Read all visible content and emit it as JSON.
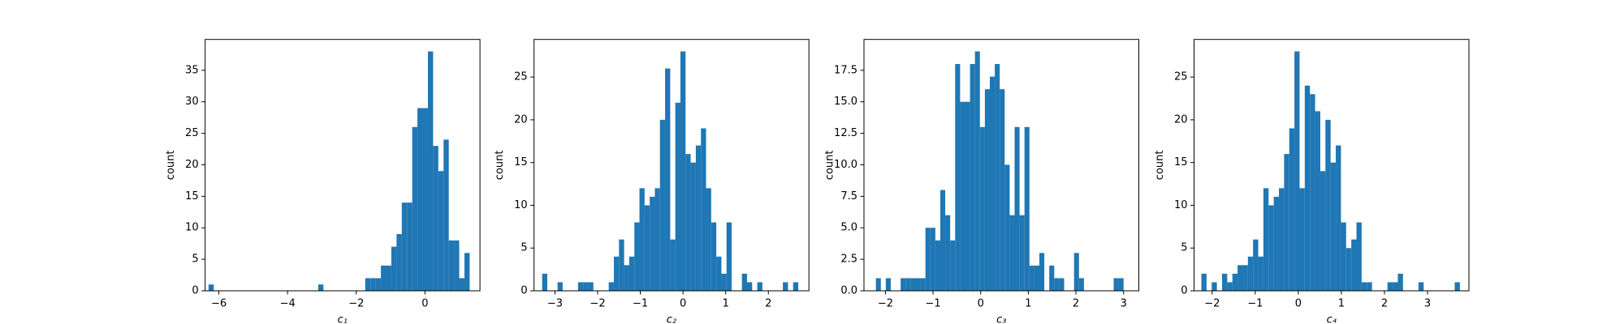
{
  "chart_data": [
    {
      "type": "histogram",
      "color": "#1f77b4",
      "xlabel": "c₁",
      "ylabel": "count",
      "bins": [
        -6.3,
        -6.148,
        -5.996,
        -5.844,
        -5.692,
        -5.54,
        -5.388,
        -5.236,
        -5.084,
        -4.932,
        -4.78,
        -4.628,
        -4.476,
        -4.324,
        -4.172,
        -4.02,
        -3.868,
        -3.716,
        -3.564,
        -3.412,
        -3.26,
        -3.108,
        -2.956,
        -2.804,
        -2.652,
        -2.5,
        -2.348,
        -2.196,
        -2.044,
        -1.892,
        -1.74,
        -1.588,
        -1.436,
        -1.284,
        -1.132,
        -0.98,
        -0.828,
        -0.676,
        -0.524,
        -0.372,
        -0.22,
        -0.068,
        0.084,
        0.236,
        0.388,
        0.54,
        0.692,
        0.844,
        0.996,
        1.148,
        1.3
      ],
      "values": [
        1,
        0,
        0,
        0,
        0,
        0,
        0,
        0,
        0,
        0,
        0,
        0,
        0,
        0,
        0,
        0,
        0,
        0,
        0,
        0,
        0,
        1,
        0,
        0,
        0,
        0,
        0,
        0,
        0,
        0,
        2,
        2,
        2,
        4,
        4,
        7,
        9,
        14,
        14,
        26,
        29,
        29,
        38,
        23,
        19,
        24,
        8,
        8,
        2,
        6
      ],
      "xlim": [
        -6.4,
        1.6
      ],
      "ylim": [
        0,
        39.9
      ],
      "xticks": [
        {
          "value": -6,
          "label": "−6"
        },
        {
          "value": -4,
          "label": "−4"
        },
        {
          "value": -2,
          "label": "−2"
        },
        0
      ],
      "yticks": [
        0,
        5,
        10,
        15,
        20,
        25,
        30,
        35
      ]
    },
    {
      "type": "histogram",
      "color": "#1f77b4",
      "xlabel": "c₂",
      "ylabel": "count",
      "bins": [
        -3.3,
        -3.18,
        -3.06,
        -2.94,
        -2.82,
        -2.7,
        -2.58,
        -2.46,
        -2.34,
        -2.22,
        -2.1,
        -1.98,
        -1.86,
        -1.74,
        -1.62,
        -1.5,
        -1.38,
        -1.26,
        -1.14,
        -1.02,
        -0.9,
        -0.78,
        -0.66,
        -0.54,
        -0.42,
        -0.3,
        -0.18,
        -0.06,
        0.06,
        0.18,
        0.3,
        0.42,
        0.54,
        0.66,
        0.78,
        0.9,
        1.02,
        1.14,
        1.26,
        1.38,
        1.5,
        1.62,
        1.74,
        1.86,
        1.98,
        2.1,
        2.22,
        2.34,
        2.46,
        2.58,
        2.7
      ],
      "values": [
        2,
        0,
        0,
        1,
        0,
        0,
        0,
        1,
        1,
        1,
        0,
        0,
        0,
        1,
        4,
        6,
        3,
        4,
        8,
        12,
        10,
        11,
        12,
        20,
        26,
        6,
        22,
        28,
        16,
        15,
        17,
        19,
        12,
        8,
        4,
        2,
        8,
        0,
        0,
        2,
        1,
        0,
        1,
        0,
        0,
        0,
        0,
        1,
        0,
        1
      ],
      "xlim": [
        -3.49,
        2.95
      ],
      "ylim": [
        0,
        29.4
      ],
      "xticks": [
        {
          "value": -3,
          "label": "−3"
        },
        {
          "value": -2,
          "label": "−2"
        },
        {
          "value": -1,
          "label": "−1"
        },
        0,
        1,
        2
      ],
      "yticks": [
        0,
        5,
        10,
        15,
        20,
        25
      ]
    },
    {
      "type": "histogram",
      "color": "#1f77b4",
      "xlabel": "c₃",
      "ylabel": "count",
      "bins": [
        -2.2,
        -2.096,
        -1.992,
        -1.888,
        -1.784,
        -1.68,
        -1.576,
        -1.472,
        -1.368,
        -1.264,
        -1.16,
        -1.056,
        -0.952,
        -0.848,
        -0.744,
        -0.64,
        -0.536,
        -0.432,
        -0.328,
        -0.224,
        -0.12,
        -0.016,
        0.088,
        0.192,
        0.296,
        0.4,
        0.504,
        0.608,
        0.712,
        0.816,
        0.92,
        1.024,
        1.128,
        1.232,
        1.336,
        1.44,
        1.544,
        1.648,
        1.752,
        1.856,
        1.96,
        2.064,
        2.168,
        2.272,
        2.376,
        2.48,
        2.584,
        2.688,
        2.792,
        2.896,
        3.0
      ],
      "values": [
        1,
        0,
        1,
        0,
        0,
        1,
        1,
        1,
        1,
        1,
        5,
        5,
        4,
        8,
        6,
        4,
        18,
        15,
        15,
        18,
        19,
        13,
        16,
        17,
        18,
        16,
        10,
        6,
        13,
        6,
        13,
        2,
        2,
        3,
        0,
        2,
        1,
        1,
        0,
        0,
        3,
        1,
        0,
        0,
        0,
        0,
        0,
        0,
        1,
        1
      ],
      "xlim": [
        -2.45,
        3.32
      ],
      "ylim": [
        0,
        19.95
      ],
      "xticks": [
        {
          "value": -2,
          "label": "−2"
        },
        {
          "value": -1,
          "label": "−1"
        },
        0,
        1,
        2,
        3
      ],
      "yticks": [
        {
          "value": 0,
          "label": "0.0"
        },
        {
          "value": 2.5,
          "label": "2.5"
        },
        {
          "value": 5,
          "label": "5.0"
        },
        {
          "value": 7.5,
          "label": "7.5"
        },
        {
          "value": 10,
          "label": "10.0"
        },
        {
          "value": 12.5,
          "label": "12.5"
        },
        {
          "value": 15,
          "label": "15.0"
        },
        {
          "value": 17.5,
          "label": "17.5"
        }
      ]
    },
    {
      "type": "histogram",
      "color": "#1f77b4",
      "xlabel": "c₄",
      "ylabel": "count",
      "bins": [
        -2.25,
        -2.13,
        -2.01,
        -1.89,
        -1.77,
        -1.65,
        -1.53,
        -1.41,
        -1.29,
        -1.17,
        -1.05,
        -0.93,
        -0.81,
        -0.69,
        -0.57,
        -0.45,
        -0.33,
        -0.21,
        -0.09,
        0.03,
        0.15,
        0.27,
        0.39,
        0.51,
        0.63,
        0.75,
        0.87,
        0.99,
        1.11,
        1.23,
        1.35,
        1.47,
        1.59,
        1.71,
        1.83,
        1.95,
        2.07,
        2.19,
        2.31,
        2.43,
        2.55,
        2.67,
        2.79,
        2.91,
        3.03,
        3.15,
        3.27,
        3.39,
        3.51,
        3.63,
        3.75
      ],
      "values": [
        2,
        0,
        1,
        0,
        2,
        1,
        2,
        3,
        3,
        4,
        6,
        4,
        12,
        10,
        11,
        12,
        16,
        19,
        28,
        12,
        24,
        23,
        21,
        14,
        20,
        15,
        17,
        8,
        5,
        6,
        8,
        1,
        1,
        0,
        0,
        0,
        1,
        1,
        2,
        0,
        0,
        0,
        1,
        0,
        0,
        0,
        0,
        0,
        0,
        1
      ],
      "xlim": [
        -2.42,
        3.96
      ],
      "ylim": [
        0,
        29.4
      ],
      "xticks": [
        {
          "value": -2,
          "label": "−2"
        },
        {
          "value": -1,
          "label": "−1"
        },
        0,
        1,
        2,
        3
      ],
      "yticks": [
        0,
        5,
        10,
        15,
        20,
        25
      ]
    }
  ]
}
